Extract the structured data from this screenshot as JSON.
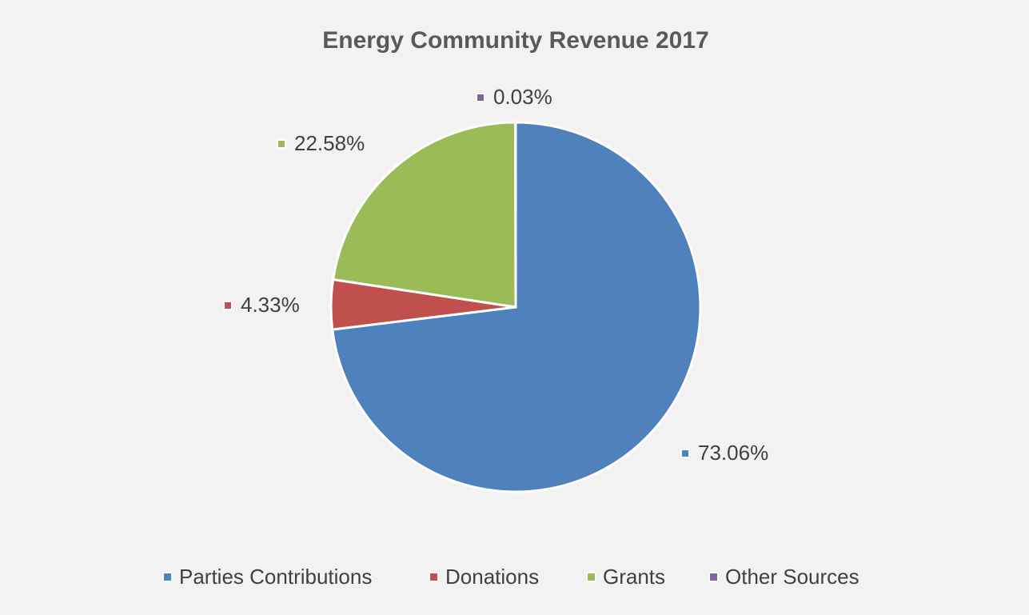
{
  "chart_data": {
    "type": "pie",
    "title": "Energy Community Revenue 2017",
    "categories": [
      "Parties Contributions",
      "Donations",
      "Grants",
      "Other Sources"
    ],
    "values": [
      73.06,
      4.33,
      22.58,
      0.03
    ],
    "value_labels": [
      "73.06%",
      "4.33%",
      "22.58%",
      "0.03%"
    ],
    "colors": [
      "#4f81bd",
      "#c0504d",
      "#9bbb59",
      "#8064a2"
    ],
    "legend": "bottom"
  }
}
